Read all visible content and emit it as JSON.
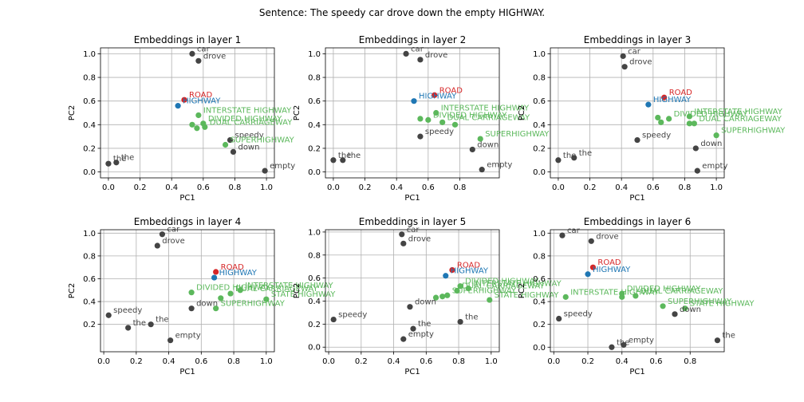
{
  "figure": {
    "suptitle": "Sentence: The speedy car drove down the empty HIGHWAY."
  },
  "colors": {
    "sentence_word": "#444444",
    "highway": "#1f77b4",
    "road": "#d62728",
    "related": "#5cb85c"
  },
  "chart_data": [
    {
      "type": "scatter",
      "title": "Embeddings in layer 1",
      "xlabel": "PC1",
      "ylabel": "PC2",
      "xlim": [
        -0.05,
        1.05
      ],
      "ylim": [
        -0.05,
        1.05
      ],
      "xticks": [
        "0.0",
        "0.2",
        "0.4",
        "0.6",
        "0.8",
        "1.0"
      ],
      "yticks": [
        "0.0",
        "0.2",
        "0.4",
        "0.6",
        "0.8",
        "1.0"
      ],
      "grid": true,
      "points": [
        {
          "label": "car",
          "x": 0.53,
          "y": 1.0,
          "group": "sentence_word"
        },
        {
          "label": "drove",
          "x": 0.57,
          "y": 0.94,
          "group": "sentence_word"
        },
        {
          "label": "ROAD",
          "x": 0.48,
          "y": 0.61,
          "group": "road"
        },
        {
          "label": "HIGHWAY",
          "x": 0.44,
          "y": 0.56,
          "group": "highway"
        },
        {
          "label": "INTERSTATE HIGHWAY",
          "x": 0.57,
          "y": 0.48,
          "group": "related"
        },
        {
          "label": "DIVIDED HIGHWAY",
          "x": 0.6,
          "y": 0.41,
          "group": "related"
        },
        {
          "label": "DUAL CARRIAGEWAY",
          "x": 0.61,
          "y": 0.38,
          "group": "related"
        },
        {
          "label": "",
          "x": 0.53,
          "y": 0.4,
          "group": "related"
        },
        {
          "label": "",
          "x": 0.56,
          "y": 0.37,
          "group": "related"
        },
        {
          "label": "speedy",
          "x": 0.77,
          "y": 0.27,
          "group": "sentence_word"
        },
        {
          "label": "SUPERHIGHWAY",
          "x": 0.74,
          "y": 0.23,
          "group": "related"
        },
        {
          "label": "down",
          "x": 0.79,
          "y": 0.17,
          "group": "sentence_word"
        },
        {
          "label": "the",
          "x": 0.0,
          "y": 0.07,
          "group": "sentence_word"
        },
        {
          "label": "the",
          "x": 0.05,
          "y": 0.08,
          "group": "sentence_word"
        },
        {
          "label": "empty",
          "x": 0.99,
          "y": 0.01,
          "group": "sentence_word"
        }
      ]
    },
    {
      "type": "scatter",
      "title": "Embeddings in layer 2",
      "xlabel": "PC1",
      "ylabel": "PC2",
      "xlim": [
        -0.05,
        1.05
      ],
      "ylim": [
        -0.05,
        1.05
      ],
      "xticks": [
        "0.0",
        "0.2",
        "0.4",
        "0.6",
        "0.8"
      ],
      "yticks": [
        "0.0",
        "0.2",
        "0.4",
        "0.6",
        "0.8",
        "1.0"
      ],
      "grid": true,
      "points": [
        {
          "label": "car",
          "x": 0.46,
          "y": 1.0,
          "group": "sentence_word"
        },
        {
          "label": "drove",
          "x": 0.55,
          "y": 0.95,
          "group": "sentence_word"
        },
        {
          "label": "ROAD",
          "x": 0.64,
          "y": 0.65,
          "group": "road"
        },
        {
          "label": "HIGHWAY",
          "x": 0.51,
          "y": 0.6,
          "group": "highway"
        },
        {
          "label": "INTERSTATE HIGHWAY",
          "x": 0.65,
          "y": 0.5,
          "group": "related"
        },
        {
          "label": "DIVIDED HIGHWAY",
          "x": 0.6,
          "y": 0.44,
          "group": "related"
        },
        {
          "label": "DUAL CARRIAGEWAY",
          "x": 0.69,
          "y": 0.42,
          "group": "related"
        },
        {
          "label": "",
          "x": 0.55,
          "y": 0.45,
          "group": "related"
        },
        {
          "label": "",
          "x": 0.77,
          "y": 0.4,
          "group": "related"
        },
        {
          "label": "speedy",
          "x": 0.55,
          "y": 0.3,
          "group": "sentence_word"
        },
        {
          "label": "SUPERHIGHWAY",
          "x": 0.93,
          "y": 0.28,
          "group": "related"
        },
        {
          "label": "down",
          "x": 0.88,
          "y": 0.19,
          "group": "sentence_word"
        },
        {
          "label": "the",
          "x": 0.0,
          "y": 0.1,
          "group": "sentence_word"
        },
        {
          "label": "the",
          "x": 0.06,
          "y": 0.1,
          "group": "sentence_word"
        },
        {
          "label": "empty",
          "x": 0.94,
          "y": 0.02,
          "group": "sentence_word"
        }
      ]
    },
    {
      "type": "scatter",
      "title": "Embeddings in layer 3",
      "xlabel": "PC1",
      "ylabel": "PC2",
      "xlim": [
        -0.05,
        1.05
      ],
      "ylim": [
        -0.05,
        1.05
      ],
      "xticks": [
        "0.0",
        "0.2",
        "0.4",
        "0.6",
        "0.8",
        "1.0"
      ],
      "yticks": [
        "0.0",
        "0.2",
        "0.4",
        "0.6",
        "0.8",
        "1.0"
      ],
      "grid": true,
      "points": [
        {
          "label": "car",
          "x": 0.41,
          "y": 0.98,
          "group": "sentence_word"
        },
        {
          "label": "drove",
          "x": 0.42,
          "y": 0.89,
          "group": "sentence_word"
        },
        {
          "label": "ROAD",
          "x": 0.67,
          "y": 0.63,
          "group": "road"
        },
        {
          "label": "HIGHWAY",
          "x": 0.57,
          "y": 0.57,
          "group": "highway"
        },
        {
          "label": "INTERSTATE HIGHWAY",
          "x": 0.83,
          "y": 0.47,
          "group": "related"
        },
        {
          "label": "DIVIDED HIGHWAY",
          "x": 0.7,
          "y": 0.45,
          "group": "related"
        },
        {
          "label": "DUAL CARRIAGEWAY",
          "x": 0.86,
          "y": 0.41,
          "group": "related"
        },
        {
          "label": "",
          "x": 0.63,
          "y": 0.46,
          "group": "related"
        },
        {
          "label": "",
          "x": 0.65,
          "y": 0.42,
          "group": "related"
        },
        {
          "label": "",
          "x": 0.83,
          "y": 0.41,
          "group": "related"
        },
        {
          "label": "speedy",
          "x": 0.5,
          "y": 0.27,
          "group": "sentence_word"
        },
        {
          "label": "SUPERHIGHWAY",
          "x": 1.0,
          "y": 0.31,
          "group": "related"
        },
        {
          "label": "down",
          "x": 0.87,
          "y": 0.2,
          "group": "sentence_word"
        },
        {
          "label": "the",
          "x": 0.0,
          "y": 0.1,
          "group": "sentence_word"
        },
        {
          "label": "the",
          "x": 0.1,
          "y": 0.12,
          "group": "sentence_word"
        },
        {
          "label": "empty",
          "x": 0.88,
          "y": 0.01,
          "group": "sentence_word"
        }
      ]
    },
    {
      "type": "scatter",
      "title": "Embeddings in layer 4",
      "xlabel": "PC1",
      "ylabel": "PC2",
      "xlim": [
        -0.02,
        1.05
      ],
      "ylim": [
        -0.04,
        1.03
      ],
      "xticks": [
        "0.0",
        "0.2",
        "0.4",
        "0.6",
        "0.8",
        "1.0"
      ],
      "yticks": [
        "0.2",
        "0.4",
        "0.6",
        "0.8",
        "1.0"
      ],
      "grid": true,
      "points": [
        {
          "label": "car",
          "x": 0.36,
          "y": 0.99,
          "group": "sentence_word"
        },
        {
          "label": "drove",
          "x": 0.33,
          "y": 0.89,
          "group": "sentence_word"
        },
        {
          "label": "ROAD",
          "x": 0.69,
          "y": 0.66,
          "group": "road"
        },
        {
          "label": "HIGHWAY",
          "x": 0.68,
          "y": 0.61,
          "group": "highway"
        },
        {
          "label": "DIVIDED HIGHWAY",
          "x": 0.54,
          "y": 0.48,
          "group": "related"
        },
        {
          "label": "INTERSTATE HIGHWAY",
          "x": 0.84,
          "y": 0.5,
          "group": "related"
        },
        {
          "label": "DUAL CARRIAGEWAY",
          "x": 0.78,
          "y": 0.47,
          "group": "related"
        },
        {
          "label": "",
          "x": 0.72,
          "y": 0.43,
          "group": "related"
        },
        {
          "label": "STATE HIGHWAY",
          "x": 1.0,
          "y": 0.42,
          "group": "related"
        },
        {
          "label": "SUPERHIGHWAY",
          "x": 0.69,
          "y": 0.34,
          "group": "related"
        },
        {
          "label": "down",
          "x": 0.54,
          "y": 0.34,
          "group": "sentence_word"
        },
        {
          "label": "speedy",
          "x": 0.03,
          "y": 0.28,
          "group": "sentence_word"
        },
        {
          "label": "the",
          "x": 0.15,
          "y": 0.17,
          "group": "sentence_word"
        },
        {
          "label": "the",
          "x": 0.29,
          "y": 0.2,
          "group": "sentence_word"
        },
        {
          "label": "empty",
          "x": 0.41,
          "y": 0.06,
          "group": "sentence_word"
        }
      ]
    },
    {
      "type": "scatter",
      "title": "Embeddings in layer 5",
      "xlabel": "PC1",
      "ylabel": "PC2",
      "xlim": [
        -0.02,
        1.05
      ],
      "ylim": [
        -0.04,
        1.02
      ],
      "xticks": [
        "0.0",
        "0.2",
        "0.4",
        "0.6",
        "0.8",
        "1.0"
      ],
      "yticks": [
        "0.0",
        "0.2",
        "0.4",
        "0.6",
        "0.8",
        "1.0"
      ],
      "grid": true,
      "points": [
        {
          "label": "car",
          "x": 0.45,
          "y": 0.98,
          "group": "sentence_word"
        },
        {
          "label": "drove",
          "x": 0.46,
          "y": 0.9,
          "group": "sentence_word"
        },
        {
          "label": "ROAD",
          "x": 0.76,
          "y": 0.67,
          "group": "road"
        },
        {
          "label": "HIGHWAY",
          "x": 0.72,
          "y": 0.62,
          "group": "highway"
        },
        {
          "label": "DIVIDED HIGHWAY",
          "x": 0.81,
          "y": 0.53,
          "group": "related"
        },
        {
          "label": "INTERSTATE HIGHWAY",
          "x": 0.86,
          "y": 0.51,
          "group": "related"
        },
        {
          "label": "DUAL CARRIAGEWAY",
          "x": 0.79,
          "y": 0.49,
          "group": "related"
        },
        {
          "label": "SUPERHIGHWAY",
          "x": 0.73,
          "y": 0.45,
          "group": "related"
        },
        {
          "label": "STATE HIGHWAY",
          "x": 0.99,
          "y": 0.41,
          "group": "related"
        },
        {
          "label": "",
          "x": 0.66,
          "y": 0.43,
          "group": "related"
        },
        {
          "label": "",
          "x": 0.7,
          "y": 0.44,
          "group": "related"
        },
        {
          "label": "down",
          "x": 0.5,
          "y": 0.35,
          "group": "sentence_word"
        },
        {
          "label": "speedy",
          "x": 0.03,
          "y": 0.24,
          "group": "sentence_word"
        },
        {
          "label": "the",
          "x": 0.81,
          "y": 0.22,
          "group": "sentence_word"
        },
        {
          "label": "the",
          "x": 0.52,
          "y": 0.16,
          "group": "sentence_word"
        },
        {
          "label": "empty",
          "x": 0.46,
          "y": 0.07,
          "group": "sentence_word"
        }
      ]
    },
    {
      "type": "scatter",
      "title": "Embeddings in layer 6",
      "xlabel": "PC1",
      "ylabel": "PC2",
      "xlim": [
        -0.02,
        1.0
      ],
      "ylim": [
        -0.04,
        1.03
      ],
      "xticks": [
        "0.0",
        "0.2",
        "0.4",
        "0.6",
        "0.8"
      ],
      "yticks": [
        "0.0",
        "0.2",
        "0.4",
        "0.6",
        "0.8",
        "1.0"
      ],
      "grid": true,
      "points": [
        {
          "label": "car",
          "x": 0.05,
          "y": 0.98,
          "group": "sentence_word"
        },
        {
          "label": "drove",
          "x": 0.22,
          "y": 0.93,
          "group": "sentence_word"
        },
        {
          "label": "ROAD",
          "x": 0.23,
          "y": 0.7,
          "group": "road"
        },
        {
          "label": "HIGHWAY",
          "x": 0.2,
          "y": 0.64,
          "group": "highway"
        },
        {
          "label": "INTERSTATE HIGHWAY",
          "x": 0.07,
          "y": 0.44,
          "group": "related"
        },
        {
          "label": "DIVIDED HIGHWAY",
          "x": 0.4,
          "y": 0.47,
          "group": "related"
        },
        {
          "label": "DUAL CARRIAGEWAY",
          "x": 0.48,
          "y": 0.45,
          "group": "related"
        },
        {
          "label": "",
          "x": 0.4,
          "y": 0.44,
          "group": "related"
        },
        {
          "label": "SUPERHIGHWAY",
          "x": 0.64,
          "y": 0.36,
          "group": "related"
        },
        {
          "label": "STATE HIGHWAY",
          "x": 0.77,
          "y": 0.34,
          "group": "related"
        },
        {
          "label": "down",
          "x": 0.71,
          "y": 0.29,
          "group": "sentence_word"
        },
        {
          "label": "speedy",
          "x": 0.03,
          "y": 0.25,
          "group": "sentence_word"
        },
        {
          "label": "the",
          "x": 0.96,
          "y": 0.06,
          "group": "sentence_word"
        },
        {
          "label": "the",
          "x": 0.34,
          "y": 0.0,
          "group": "sentence_word"
        },
        {
          "label": "empty",
          "x": 0.41,
          "y": 0.02,
          "group": "sentence_word"
        }
      ]
    }
  ]
}
